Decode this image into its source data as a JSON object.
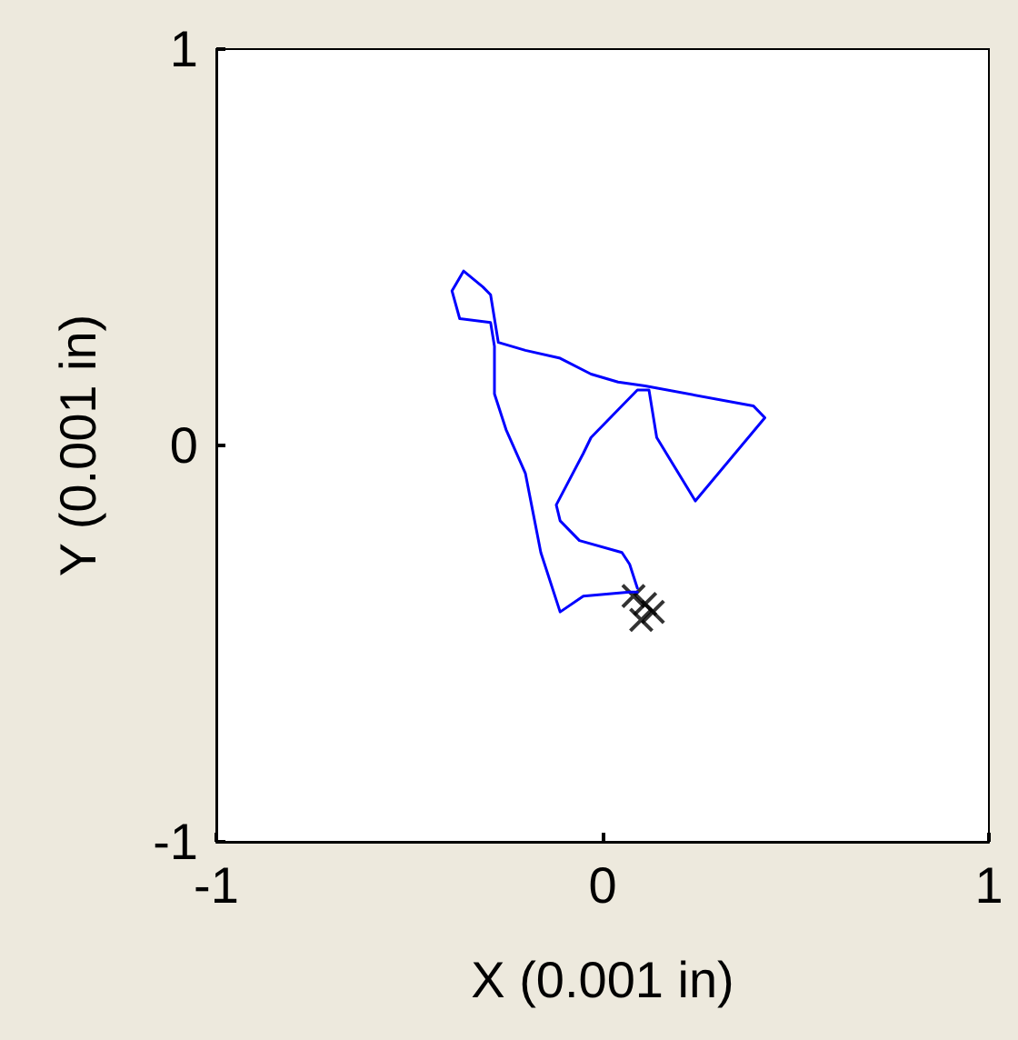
{
  "chart_data": {
    "type": "line",
    "xlabel": "X (0.001 in)",
    "ylabel": "Y (0.001 in)",
    "xlim": [
      -1,
      1
    ],
    "ylim": [
      -1,
      1
    ],
    "xticks": [
      -1,
      0,
      1
    ],
    "yticks": [
      -1,
      0,
      1
    ],
    "grid": false,
    "marker": "none",
    "line_style": "solid",
    "series": [
      {
        "color": "#0000ff",
        "x": [
          0.09,
          0.07,
          -0.05,
          -0.11,
          -0.16,
          -0.18,
          -0.2,
          -0.25,
          -0.28,
          -0.28,
          -0.29,
          -0.37,
          -0.39,
          -0.36,
          -0.31,
          -0.29,
          -0.27,
          -0.2,
          -0.11,
          -0.03,
          0.04,
          0.11,
          0.39,
          0.42,
          0.24,
          0.14,
          0.12,
          0.09,
          -0.03,
          -0.05,
          -0.12,
          -0.11,
          -0.06,
          0.05,
          0.07,
          0.09
        ],
        "values": [
          -0.37,
          -0.37,
          -0.38,
          -0.42,
          -0.27,
          -0.17,
          -0.07,
          0.04,
          0.13,
          0.25,
          0.31,
          0.32,
          0.39,
          0.44,
          0.4,
          0.38,
          0.26,
          0.24,
          0.22,
          0.18,
          0.16,
          0.15,
          0.1,
          0.07,
          -0.14,
          0.02,
          0.14,
          0.14,
          0.02,
          -0.02,
          -0.15,
          -0.19,
          -0.24,
          -0.27,
          -0.3,
          -0.36
        ]
      },
      {
        "type": "scatter",
        "color": "#000000",
        "marker": "cross",
        "x": [
          0.08,
          0.11,
          0.13,
          0.1
        ],
        "values": [
          -0.38,
          -0.4,
          -0.42,
          -0.44
        ]
      }
    ]
  }
}
